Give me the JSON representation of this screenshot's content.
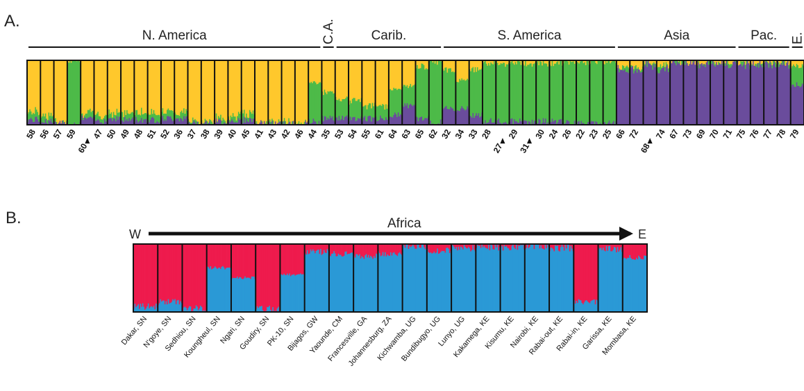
{
  "colors": {
    "yellow": "#FFC82C",
    "green": "#4DBA48",
    "purple": "#6A4C9C",
    "red": "#EE1B4D",
    "blue": "#2A99D6",
    "border": "#111111"
  },
  "panelA": {
    "letter": "A."
  },
  "panelB": {
    "letter": "B.",
    "region": "Africa",
    "dir_west": "W",
    "dir_east": "E"
  },
  "chart_data": [
    {
      "type": "bar",
      "stacked": true,
      "panel": "A.",
      "regions": [
        "N. America",
        "C.A.",
        "Carib.",
        "S. America",
        "Asia",
        "Pac.",
        "E."
      ],
      "populations": [
        {
          "label": "58",
          "region": "N. America",
          "comp": [
            0.8,
            0.12,
            0.08
          ]
        },
        {
          "label": "56",
          "region": "N. America",
          "comp": [
            0.84,
            0.1,
            0.06
          ]
        },
        {
          "label": "57",
          "region": "N. America",
          "comp": [
            0.98,
            0.01,
            0.01
          ]
        },
        {
          "label": "59",
          "region": "N. America",
          "comp": [
            0.0,
            1.0,
            0.0
          ]
        },
        {
          "label": "60",
          "region": "N. America",
          "comp": [
            0.82,
            0.08,
            0.1
          ],
          "arrow": true
        },
        {
          "label": "47",
          "region": "N. America",
          "comp": [
            0.85,
            0.08,
            0.07
          ]
        },
        {
          "label": "50",
          "region": "N. America",
          "comp": [
            0.8,
            0.1,
            0.1
          ]
        },
        {
          "label": "49",
          "region": "N. America",
          "comp": [
            0.82,
            0.1,
            0.08
          ]
        },
        {
          "label": "48",
          "region": "N. America",
          "comp": [
            0.8,
            0.12,
            0.08
          ]
        },
        {
          "label": "51",
          "region": "N. America",
          "comp": [
            0.82,
            0.1,
            0.08
          ]
        },
        {
          "label": "52",
          "region": "N. America",
          "comp": [
            0.78,
            0.12,
            0.1
          ]
        },
        {
          "label": "36",
          "region": "N. America",
          "comp": [
            0.8,
            0.1,
            0.1
          ]
        },
        {
          "label": "37",
          "region": "N. America",
          "comp": [
            0.95,
            0.03,
            0.02
          ]
        },
        {
          "label": "38",
          "region": "N. America",
          "comp": [
            0.95,
            0.03,
            0.02
          ]
        },
        {
          "label": "39",
          "region": "N. America",
          "comp": [
            0.9,
            0.05,
            0.05
          ]
        },
        {
          "label": "40",
          "region": "N. America",
          "comp": [
            0.85,
            0.08,
            0.07
          ]
        },
        {
          "label": "45",
          "region": "N. America",
          "comp": [
            0.82,
            0.1,
            0.08
          ]
        },
        {
          "label": "41",
          "region": "N. America",
          "comp": [
            0.95,
            0.03,
            0.02
          ]
        },
        {
          "label": "43",
          "region": "N. America",
          "comp": [
            0.97,
            0.02,
            0.01
          ]
        },
        {
          "label": "42",
          "region": "N. America",
          "comp": [
            0.97,
            0.02,
            0.01
          ]
        },
        {
          "label": "46",
          "region": "N. America",
          "comp": [
            0.97,
            0.02,
            0.01
          ]
        },
        {
          "label": "44",
          "region": "N. America",
          "comp": [
            0.35,
            0.6,
            0.05
          ]
        },
        {
          "label": "35",
          "region": "C.A.",
          "comp": [
            0.5,
            0.4,
            0.1
          ]
        },
        {
          "label": "53",
          "region": "Carib.",
          "comp": [
            0.6,
            0.3,
            0.1
          ]
        },
        {
          "label": "54",
          "region": "Carib.",
          "comp": [
            0.62,
            0.28,
            0.1
          ]
        },
        {
          "label": "55",
          "region": "Carib.",
          "comp": [
            0.7,
            0.2,
            0.1
          ]
        },
        {
          "label": "61",
          "region": "Carib.",
          "comp": [
            0.7,
            0.2,
            0.1
          ]
        },
        {
          "label": "64",
          "region": "Carib.",
          "comp": [
            0.45,
            0.4,
            0.15
          ]
        },
        {
          "label": "63",
          "region": "Carib.",
          "comp": [
            0.4,
            0.3,
            0.3
          ]
        },
        {
          "label": "65",
          "region": "Carib.",
          "comp": [
            0.1,
            0.8,
            0.1
          ]
        },
        {
          "label": "62",
          "region": "Carib.",
          "comp": [
            0.02,
            0.95,
            0.03
          ]
        },
        {
          "label": "32",
          "region": "S. America",
          "comp": [
            0.15,
            0.6,
            0.25
          ]
        },
        {
          "label": "34",
          "region": "S. America",
          "comp": [
            0.3,
            0.45,
            0.25
          ]
        },
        {
          "label": "33",
          "region": "S. America",
          "comp": [
            0.15,
            0.7,
            0.15
          ]
        },
        {
          "label": "28",
          "region": "S. America",
          "comp": [
            0.05,
            0.9,
            0.05
          ]
        },
        {
          "label": "27",
          "region": "S. America",
          "comp": [
            0.05,
            0.9,
            0.05
          ],
          "arrow": true
        },
        {
          "label": "29",
          "region": "S. America",
          "comp": [
            0.05,
            0.9,
            0.05
          ]
        },
        {
          "label": "31",
          "region": "S. America",
          "comp": [
            0.05,
            0.9,
            0.05
          ],
          "arrow": true
        },
        {
          "label": "30",
          "region": "S. America",
          "comp": [
            0.05,
            0.9,
            0.05
          ]
        },
        {
          "label": "24",
          "region": "S. America",
          "comp": [
            0.05,
            0.9,
            0.05
          ]
        },
        {
          "label": "26",
          "region": "S. America",
          "comp": [
            0.02,
            0.96,
            0.02
          ]
        },
        {
          "label": "22",
          "region": "S. America",
          "comp": [
            0.02,
            0.96,
            0.02
          ]
        },
        {
          "label": "23",
          "region": "S. America",
          "comp": [
            0.01,
            0.98,
            0.01
          ]
        },
        {
          "label": "25",
          "region": "S. America",
          "comp": [
            0.01,
            0.98,
            0.01
          ]
        },
        {
          "label": "66",
          "region": "Asia",
          "comp": [
            0.1,
            0.05,
            0.85
          ]
        },
        {
          "label": "72",
          "region": "Asia",
          "comp": [
            0.12,
            0.05,
            0.83
          ]
        },
        {
          "label": "68",
          "region": "Asia",
          "comp": [
            0.05,
            0.05,
            0.9
          ],
          "arrow": true
        },
        {
          "label": "74",
          "region": "Asia",
          "comp": [
            0.08,
            0.07,
            0.85
          ]
        },
        {
          "label": "67",
          "region": "Asia",
          "comp": [
            0.03,
            0.02,
            0.95
          ]
        },
        {
          "label": "73",
          "region": "Asia",
          "comp": [
            0.03,
            0.02,
            0.95
          ]
        },
        {
          "label": "69",
          "region": "Asia",
          "comp": [
            0.03,
            0.02,
            0.95
          ]
        },
        {
          "label": "70",
          "region": "Asia",
          "comp": [
            0.02,
            0.02,
            0.96
          ]
        },
        {
          "label": "71",
          "region": "Asia",
          "comp": [
            0.02,
            0.02,
            0.96
          ]
        },
        {
          "label": "75",
          "region": "Pac.",
          "comp": [
            0.03,
            0.02,
            0.95
          ]
        },
        {
          "label": "76",
          "region": "Pac.",
          "comp": [
            0.03,
            0.02,
            0.95
          ]
        },
        {
          "label": "77",
          "region": "Pac.",
          "comp": [
            0.03,
            0.02,
            0.95
          ]
        },
        {
          "label": "78",
          "region": "Pac.",
          "comp": [
            0.03,
            0.02,
            0.95
          ]
        },
        {
          "label": "79",
          "region": "E.",
          "comp": [
            0.1,
            0.3,
            0.6
          ]
        }
      ],
      "components": [
        "yellow",
        "green",
        "purple"
      ]
    },
    {
      "type": "bar",
      "stacked": true,
      "panel": "B.",
      "regions": [
        "Africa"
      ],
      "populations": [
        {
          "label": "Dakar, SN",
          "comp": [
            0.92,
            0.08
          ]
        },
        {
          "label": "N'goye, SN",
          "comp": [
            0.85,
            0.15
          ]
        },
        {
          "label": "Sedhiou, SN",
          "comp": [
            0.95,
            0.05
          ]
        },
        {
          "label": "Koungheul, SN",
          "comp": [
            0.35,
            0.65
          ]
        },
        {
          "label": "Ngari, SN",
          "comp": [
            0.5,
            0.5
          ]
        },
        {
          "label": "Goudiry, SN",
          "comp": [
            0.96,
            0.04
          ]
        },
        {
          "label": "PK-10, SN",
          "comp": [
            0.45,
            0.55
          ]
        },
        {
          "label": "Bijagos, GW",
          "comp": [
            0.12,
            0.88
          ]
        },
        {
          "label": "Yaounde, CM",
          "comp": [
            0.15,
            0.85
          ]
        },
        {
          "label": "Francesville, GA",
          "comp": [
            0.18,
            0.82
          ]
        },
        {
          "label": "Johannesburg, ZA",
          "comp": [
            0.15,
            0.85
          ]
        },
        {
          "label": "Kichwamba, UG",
          "comp": [
            0.03,
            0.97
          ]
        },
        {
          "label": "Bundibugyo, UG",
          "comp": [
            0.1,
            0.9
          ]
        },
        {
          "label": "Lunyo, UG",
          "comp": [
            0.06,
            0.94
          ]
        },
        {
          "label": "Kakamega, KE",
          "comp": [
            0.05,
            0.95
          ]
        },
        {
          "label": "Kisumu, KE",
          "comp": [
            0.05,
            0.95
          ]
        },
        {
          "label": "Nairobi, KE",
          "comp": [
            0.03,
            0.97
          ]
        },
        {
          "label": "Rabai-out, KE",
          "comp": [
            0.06,
            0.94
          ]
        },
        {
          "label": "Rabai-in, KE",
          "comp": [
            0.85,
            0.15
          ]
        },
        {
          "label": "Garissa, KE",
          "comp": [
            0.08,
            0.92
          ]
        },
        {
          "label": "Mombasa, KE",
          "comp": [
            0.2,
            0.8
          ]
        }
      ],
      "components": [
        "red",
        "blue"
      ]
    }
  ]
}
